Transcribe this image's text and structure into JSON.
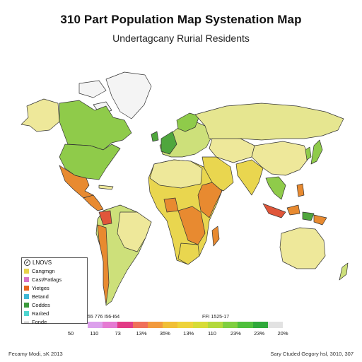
{
  "title": "310 Part Population Map Systenation Map",
  "subtitle": "Undertagcany Rurial Residents",
  "legend": {
    "heading": "LNOVS",
    "items": [
      {
        "label": "Cangmgn",
        "color": "#e8d24a"
      },
      {
        "label": "Cast/Fatlags",
        "color": "#d873c7"
      },
      {
        "label": "Yietges",
        "color": "#e8651e"
      },
      {
        "label": "Betand",
        "color": "#3fb8d6"
      },
      {
        "label": "Coddes",
        "color": "#3c9a3c"
      },
      {
        "label": "Rarited",
        "color": "#4fd6d0"
      },
      {
        "label": "Fonde",
        "color": "line"
      }
    ]
  },
  "scale": {
    "left_label": "55 776 I56-I64",
    "right_label": "FFI 1525-17",
    "colors": [
      "#dca0ec",
      "#e57ad3",
      "#e23b86",
      "#f0705a",
      "#f29a3d",
      "#f1bf36",
      "#eed33a",
      "#d7dc37",
      "#b3d93c",
      "#7fcf3f",
      "#4fbf3c",
      "#2fa83a",
      "#e2e2e2"
    ],
    "ticks": [
      "50",
      "110",
      "73",
      "13%",
      "35%",
      "13%",
      "110",
      "23%",
      "23%",
      "20%"
    ]
  },
  "footer": {
    "left": "Fecamy Modi, sK 2013",
    "right": "Sary Ctuded Gegory hsl, 3010, 307"
  },
  "palette": {
    "ocean": "#ffffff",
    "border": "#333333",
    "pale_yellow": "#eee89a",
    "yellow": "#e9d64f",
    "light_green": "#cde07a",
    "green": "#8fcb4a",
    "dark_green": "#4fa63d",
    "orange": "#e88a30",
    "red_orange": "#e0563a",
    "ice": "#f4f4f4"
  }
}
